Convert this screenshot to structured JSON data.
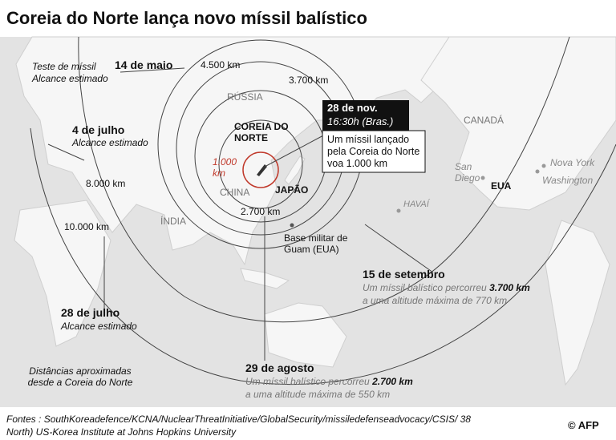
{
  "title": "Coreia do Norte lança novo míssil balístico",
  "map_labels": {
    "russia": "RÚSSIA",
    "canada": "CANADÁ",
    "china": "CHINA",
    "japan": "JAPÃO",
    "india": "ÍNDIA",
    "north_korea": "COREIA DO NORTE",
    "usa": "EUA",
    "hawaii": "HAVAÍ",
    "san_diego": "San Diego",
    "new_york": "Nova York",
    "washington": "Washington",
    "guam": "Base militar de Guam (EUA)"
  },
  "ranges": {
    "r1000": "1.000 km",
    "r2700": "2.700 km",
    "r3700": "3.700 km",
    "r4500": "4.500 km",
    "r8000": "8.000 km",
    "r10000": "10.000 km"
  },
  "tests": {
    "may14": {
      "prefix": "Teste de míssil",
      "date": "14 de maio",
      "note": "Alcance estimado"
    },
    "jul4": {
      "date": "4 de julho",
      "note": "Alcance estimado"
    },
    "jul28": {
      "date": "28 de julho",
      "note": "Alcance estimado"
    },
    "aug29": {
      "date": "29 de agosto",
      "text": "Um míssil balístico percorreu",
      "distance": "2.700 km",
      "altitude": "a uma altitude máxima de 550 km"
    },
    "sep15": {
      "date": "15 de setembro",
      "text": "Um míssil balístico percorreu",
      "distance": "3.700 km",
      "altitude": "a uma altitude máxima de 770 km"
    }
  },
  "callout": {
    "date": "28 de nov.",
    "time": "16:30h (Bras.)",
    "text": "Um míssil lançado pela Coreia do Norte voa 1.000 km"
  },
  "note": "Distâncias aproximadas desde a Coreia do Norte",
  "sources": "Fontes : SouthKoreadefence/KCNA/NuclearThreatInitiative/GlobalSecurity/missiledefenseadvocacy/CSIS/ 38 North) US-Korea Institute at Johns Hopkins University",
  "credit": "© AFP"
}
